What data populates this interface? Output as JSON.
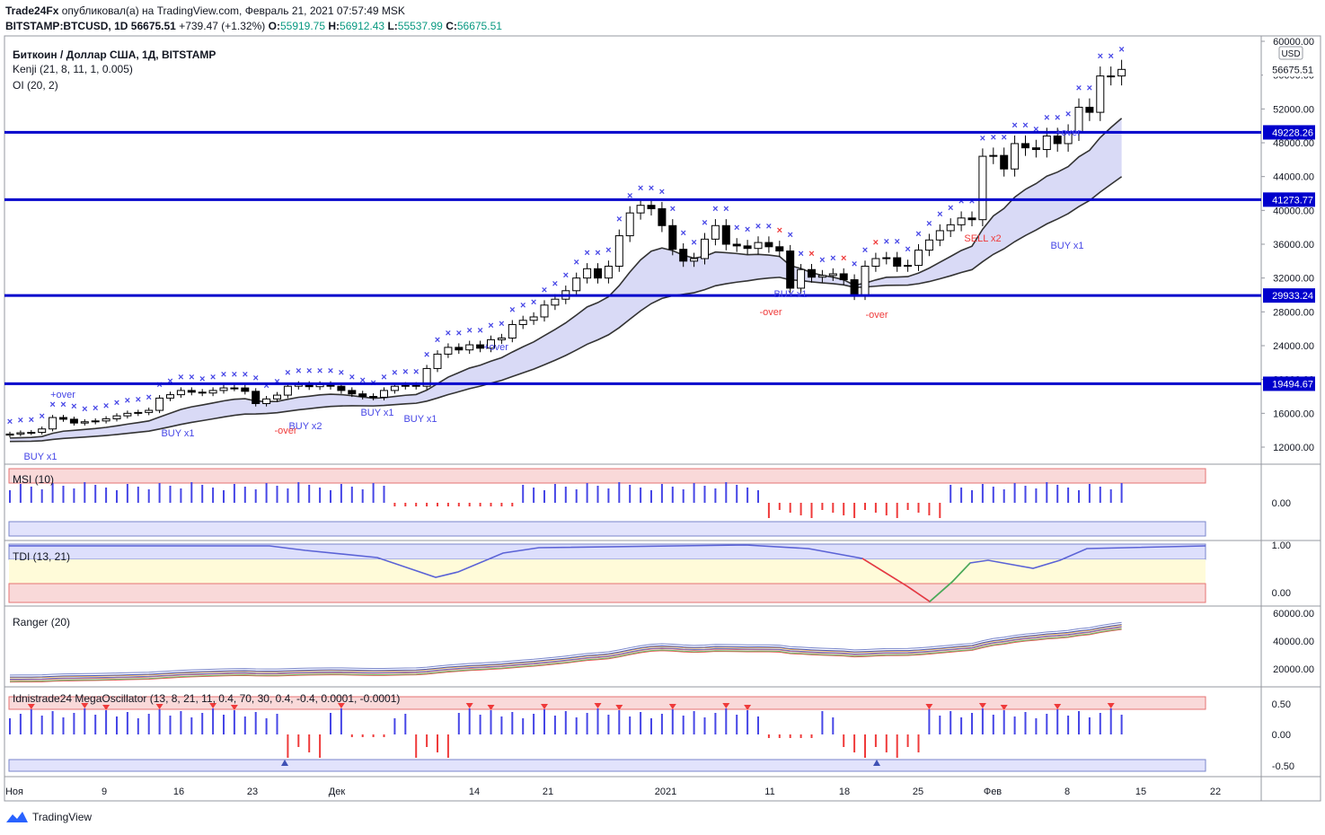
{
  "header": {
    "line1_author": "Trade24Fx",
    "line1_rest": " опубликовал(а) на TradingView.com, Февраль 21, 2021 07:57:49 MSK",
    "symbol": "BITSTAMP:BTCUSD, 1D",
    "last": "56675.51",
    "change": "+739.47 (+1.32%)",
    "o_label": "O:",
    "o": "55919.75",
    "h_label": "H:",
    "h": "56912.43",
    "l_label": "L:",
    "l": "55537.99",
    "c_label": "C:",
    "c": "56675.51"
  },
  "legend": {
    "title": "Биткоин / Доллар США, 1Д, BITSTAMP",
    "kenji": "Kenji (21, 8, 11, 1, 0.005)",
    "oi": "OI (20, 2)"
  },
  "panes": {
    "msi": "MSI (10)",
    "tdi": "TDI (13, 21)",
    "ranger": "Ranger (20)",
    "mega": "Idnistrade24 MegaOscillator (13, 8, 21, 11, 0.4, 70, 30, 0.4, -0.4, 0.0001, -0.0001)"
  },
  "footer": {
    "brand": "TradingView"
  },
  "colors": {
    "up": "#ffffff",
    "down": "#000000",
    "level": "#0000cc",
    "blue": "#4646e6",
    "red": "#ef3a3a",
    "green": "#4caf50"
  },
  "chart_data": [
    {
      "type": "candlestick",
      "title": "Биткоин / Доллар США, 1Д, BITSTAMP",
      "currency": "USD",
      "x_ticks": [
        "Ноя",
        "9",
        "16",
        "23",
        "Дек",
        "14",
        "21",
        "2021",
        "11",
        "18",
        "25",
        "Фев",
        "8",
        "15",
        "22"
      ],
      "y_ticks": [
        "12000.00",
        "16000.00",
        "20000.00",
        "24000.00",
        "28000.00",
        "32000.00",
        "36000.00",
        "40000.00",
        "44000.00",
        "48000.00",
        "52000.00",
        "56000.00",
        "60000.00"
      ],
      "ylim": [
        10000,
        60000
      ],
      "levels": [
        "19494.67",
        "29933.24",
        "41273.77",
        "49228.26"
      ],
      "last_price_label": "56675.51",
      "annotations": [
        "+over",
        "BUY x1",
        "BUY x1",
        "BUY x2",
        "BUY x1",
        "BUY x1",
        "-over",
        "+over",
        "-over",
        "BUY x1",
        "-over",
        "SELL x2",
        "+over",
        "BUY x1"
      ],
      "closes": [
        13550,
        13700,
        13750,
        14150,
        15500,
        15300,
        14850,
        15000,
        15100,
        15350,
        15700,
        16000,
        16100,
        16350,
        17800,
        18200,
        18700,
        18500,
        18400,
        18700,
        19000,
        19000,
        18600,
        17150,
        17700,
        18150,
        19200,
        19400,
        19150,
        19400,
        19200,
        18700,
        18300,
        18000,
        17900,
        18700,
        19200,
        19300,
        19200,
        21300,
        23000,
        23800,
        23500,
        24100,
        23700,
        24700,
        24900,
        26500,
        27000,
        27400,
        28800,
        29500,
        30500,
        32000,
        33100,
        32000,
        33400,
        37000,
        39700,
        40600,
        40200,
        38200,
        35400,
        34000,
        34300,
        36600,
        38200,
        36000,
        35800,
        35500,
        36200,
        35700,
        35200,
        30800,
        33000,
        32100,
        32300,
        32500,
        31800,
        30000,
        33400,
        34300,
        34400,
        33400,
        33500,
        35300,
        36500,
        37600,
        38300,
        39100,
        38900,
        46400,
        46500,
        44900,
        47900,
        47400,
        47200,
        48800,
        47900,
        49200,
        52200,
        51600,
        55900,
        55900,
        56675.51
      ]
    },
    {
      "type": "bar",
      "title": "MSI (10)",
      "y_ticks": [
        "0.00"
      ]
    },
    {
      "type": "line",
      "title": "TDI (13, 21)",
      "y_ticks": [
        "1.00",
        "0.00"
      ]
    },
    {
      "type": "line",
      "title": "Ranger (20)",
      "y_ticks": [
        "60000.00",
        "40000.00",
        "20000.00"
      ]
    },
    {
      "type": "bar",
      "title": "Idnistrade24 MegaOscillator (13, 8, 21, 11, 0.4, 70, 30, 0.4, -0.4, 0.0001, -0.0001)",
      "y_ticks": [
        "0.50",
        "0.00",
        "-0.50"
      ]
    }
  ]
}
